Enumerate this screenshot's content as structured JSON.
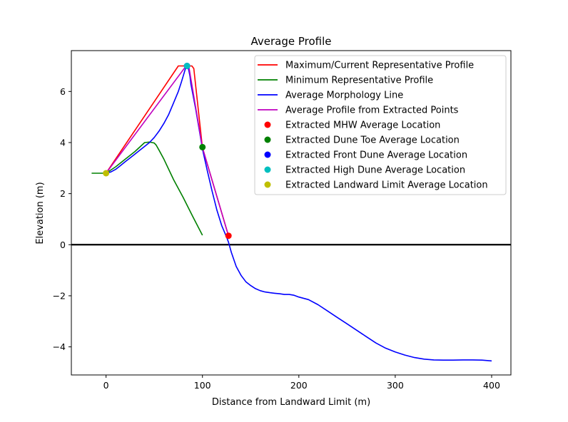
{
  "chart_data": {
    "type": "line",
    "title": "Average Profile",
    "xlabel": "Distance from Landward Limit (m)",
    "ylabel": "Elevation (m)",
    "xlim": [
      -36,
      420
    ],
    "ylim": [
      -5.1,
      7.6
    ],
    "x_ticks": [
      0,
      100,
      200,
      300,
      400
    ],
    "y_ticks": [
      -4,
      -2,
      0,
      2,
      4,
      6
    ],
    "grid": false,
    "legend_position": "top-right",
    "hline": {
      "y": 0,
      "color": "#000000"
    },
    "series": [
      {
        "name": "Maximum/Current Representative Profile",
        "kind": "line",
        "color": "#ff0000",
        "x": [
          0,
          75,
          80,
          83,
          89,
          91,
          100,
          127
        ],
        "y": [
          2.8,
          7.0,
          7.0,
          7.0,
          7.0,
          6.9,
          3.8,
          0.35
        ]
      },
      {
        "name": "Minimum Representative Profile",
        "kind": "line",
        "color": "#008000",
        "x": [
          -15,
          0,
          10,
          20,
          30,
          40,
          45,
          48,
          50,
          52,
          55,
          60,
          70,
          80,
          90,
          100
        ],
        "y": [
          2.8,
          2.8,
          3.05,
          3.35,
          3.65,
          4.0,
          4.02,
          4.0,
          3.98,
          3.9,
          3.7,
          3.35,
          2.55,
          1.85,
          1.1,
          0.37
        ]
      },
      {
        "name": "Average Morphology Line",
        "kind": "line",
        "color": "#0000ff",
        "x": [
          0,
          5,
          10,
          15,
          20,
          25,
          30,
          35,
          40,
          45,
          50,
          55,
          60,
          65,
          70,
          75,
          78,
          80,
          82,
          83,
          84,
          85,
          86,
          87,
          88,
          90,
          93,
          96,
          100,
          105,
          110,
          115,
          120,
          125,
          127,
          130,
          135,
          140,
          145,
          150,
          155,
          160,
          165,
          170,
          175,
          180,
          185,
          190,
          195,
          200,
          210,
          220,
          230,
          240,
          250,
          260,
          270,
          280,
          290,
          300,
          310,
          320,
          330,
          340,
          350,
          360,
          370,
          380,
          390,
          400
        ],
        "y": [
          2.8,
          2.85,
          2.95,
          3.1,
          3.25,
          3.4,
          3.55,
          3.7,
          3.85,
          4.0,
          4.2,
          4.45,
          4.75,
          5.1,
          5.55,
          6.0,
          6.35,
          6.6,
          6.85,
          6.98,
          7.0,
          6.95,
          6.8,
          6.6,
          6.3,
          5.9,
          5.3,
          4.65,
          3.75,
          2.9,
          2.1,
          1.35,
          0.75,
          0.3,
          0.1,
          -0.3,
          -0.85,
          -1.2,
          -1.45,
          -1.6,
          -1.72,
          -1.8,
          -1.85,
          -1.88,
          -1.9,
          -1.92,
          -1.95,
          -1.95,
          -1.98,
          -2.05,
          -2.15,
          -2.35,
          -2.6,
          -2.85,
          -3.1,
          -3.35,
          -3.6,
          -3.85,
          -4.05,
          -4.2,
          -4.32,
          -4.42,
          -4.48,
          -4.51,
          -4.52,
          -4.52,
          -4.51,
          -4.51,
          -4.52,
          -4.55
        ]
      },
      {
        "name": "Average Profile from Extracted Points",
        "kind": "line",
        "color": "#bf00bf",
        "x": [
          0,
          83,
          86,
          100,
          127
        ],
        "y": [
          2.8,
          7.0,
          6.95,
          3.8,
          0.35
        ]
      },
      {
        "name": "Extracted MHW Average Location",
        "kind": "point",
        "color": "#ff0000",
        "x": [
          127
        ],
        "y": [
          0.35
        ]
      },
      {
        "name": "Extracted Dune Toe Average Location",
        "kind": "point",
        "color": "#008000",
        "x": [
          100
        ],
        "y": [
          3.82
        ]
      },
      {
        "name": "Extracted Front Dune Average Location",
        "kind": "point",
        "color": "#0000ff",
        "x": [
          84
        ],
        "y": [
          7.0
        ]
      },
      {
        "name": "Extracted High Dune Average Location",
        "kind": "point",
        "color": "#00bfbf",
        "x": [
          84
        ],
        "y": [
          7.0
        ]
      },
      {
        "name": "Extracted Landward Limit Average Location",
        "kind": "point",
        "color": "#bfbf00",
        "x": [
          0
        ],
        "y": [
          2.8
        ]
      }
    ]
  }
}
